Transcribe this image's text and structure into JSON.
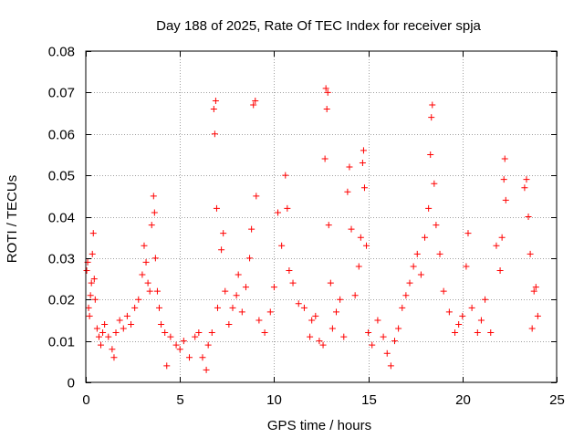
{
  "colors": {
    "series": "#ff0000",
    "grid": "#a0a0a0",
    "axis": "#000000"
  },
  "chart_data": {
    "type": "scatter",
    "title": "Day 188 of 2025, Rate Of TEC Index for receiver spja",
    "xlabel": "GPS time / hours",
    "ylabel": "ROTI / TECUs",
    "xlim": [
      0,
      25
    ],
    "ylim": [
      0,
      0.08
    ],
    "x_ticks": [
      0,
      5,
      10,
      15,
      20,
      25
    ],
    "x_tick_labels": [
      "0",
      "5",
      "10",
      "15",
      "20",
      "25"
    ],
    "y_ticks": [
      0,
      0.01,
      0.02,
      0.03,
      0.04,
      0.05,
      0.06,
      0.07,
      0.08
    ],
    "y_tick_labels": [
      "0",
      "0.01",
      "0.02",
      "0.03",
      "0.04",
      "0.05",
      "0.06",
      "0.07",
      "0.08"
    ],
    "grid": true,
    "marker": "+",
    "series": [
      {
        "name": "ROTI",
        "points": [
          [
            0.05,
            0.027
          ],
          [
            0.1,
            0.029
          ],
          [
            0.15,
            0.018
          ],
          [
            0.2,
            0.016
          ],
          [
            0.25,
            0.021
          ],
          [
            0.3,
            0.024
          ],
          [
            0.35,
            0.031
          ],
          [
            0.4,
            0.036
          ],
          [
            0.45,
            0.025
          ],
          [
            0.5,
            0.02
          ],
          [
            0.6,
            0.013
          ],
          [
            0.7,
            0.011
          ],
          [
            0.8,
            0.009
          ],
          [
            0.9,
            0.012
          ],
          [
            1.0,
            0.014
          ],
          [
            1.2,
            0.011
          ],
          [
            1.4,
            0.008
          ],
          [
            1.5,
            0.006
          ],
          [
            1.6,
            0.012
          ],
          [
            1.8,
            0.015
          ],
          [
            2.0,
            0.013
          ],
          [
            2.2,
            0.016
          ],
          [
            2.4,
            0.014
          ],
          [
            2.6,
            0.018
          ],
          [
            2.8,
            0.02
          ],
          [
            3.0,
            0.026
          ],
          [
            3.1,
            0.033
          ],
          [
            3.2,
            0.029
          ],
          [
            3.3,
            0.024
          ],
          [
            3.4,
            0.022
          ],
          [
            3.5,
            0.038
          ],
          [
            3.6,
            0.045
          ],
          [
            3.65,
            0.041
          ],
          [
            3.7,
            0.03
          ],
          [
            3.8,
            0.022
          ],
          [
            3.9,
            0.018
          ],
          [
            4.0,
            0.014
          ],
          [
            4.2,
            0.012
          ],
          [
            4.3,
            0.004
          ],
          [
            4.5,
            0.011
          ],
          [
            4.8,
            0.009
          ],
          [
            5.0,
            0.008
          ],
          [
            5.2,
            0.01
          ],
          [
            5.5,
            0.006
          ],
          [
            5.8,
            0.011
          ],
          [
            6.0,
            0.012
          ],
          [
            6.2,
            0.006
          ],
          [
            6.4,
            0.003
          ],
          [
            6.5,
            0.009
          ],
          [
            6.7,
            0.012
          ],
          [
            6.8,
            0.066
          ],
          [
            6.85,
            0.06
          ],
          [
            6.9,
            0.068
          ],
          [
            6.95,
            0.042
          ],
          [
            7.0,
            0.018
          ],
          [
            7.2,
            0.032
          ],
          [
            7.3,
            0.036
          ],
          [
            7.4,
            0.022
          ],
          [
            7.6,
            0.014
          ],
          [
            7.8,
            0.018
          ],
          [
            8.0,
            0.021
          ],
          [
            8.1,
            0.026
          ],
          [
            8.3,
            0.017
          ],
          [
            8.5,
            0.023
          ],
          [
            8.7,
            0.03
          ],
          [
            8.8,
            0.037
          ],
          [
            8.9,
            0.067
          ],
          [
            9.0,
            0.068
          ],
          [
            9.05,
            0.045
          ],
          [
            9.2,
            0.015
          ],
          [
            9.5,
            0.012
          ],
          [
            9.8,
            0.017
          ],
          [
            10.0,
            0.023
          ],
          [
            10.2,
            0.041
          ],
          [
            10.4,
            0.033
          ],
          [
            10.6,
            0.05
          ],
          [
            10.7,
            0.042
          ],
          [
            10.8,
            0.027
          ],
          [
            11.0,
            0.024
          ],
          [
            11.3,
            0.019
          ],
          [
            11.6,
            0.018
          ],
          [
            11.9,
            0.011
          ],
          [
            12.0,
            0.015
          ],
          [
            12.2,
            0.016
          ],
          [
            12.4,
            0.01
          ],
          [
            12.6,
            0.009
          ],
          [
            12.7,
            0.054
          ],
          [
            12.75,
            0.071
          ],
          [
            12.8,
            0.066
          ],
          [
            12.85,
            0.07
          ],
          [
            12.9,
            0.038
          ],
          [
            13.0,
            0.024
          ],
          [
            13.1,
            0.013
          ],
          [
            13.3,
            0.017
          ],
          [
            13.5,
            0.02
          ],
          [
            13.7,
            0.011
          ],
          [
            13.9,
            0.046
          ],
          [
            14.0,
            0.052
          ],
          [
            14.1,
            0.037
          ],
          [
            14.3,
            0.021
          ],
          [
            14.5,
            0.028
          ],
          [
            14.6,
            0.035
          ],
          [
            14.7,
            0.053
          ],
          [
            14.75,
            0.056
          ],
          [
            14.8,
            0.047
          ],
          [
            14.9,
            0.033
          ],
          [
            15.0,
            0.012
          ],
          [
            15.2,
            0.009
          ],
          [
            15.5,
            0.015
          ],
          [
            15.8,
            0.011
          ],
          [
            16.0,
            0.007
          ],
          [
            16.2,
            0.004
          ],
          [
            16.4,
            0.01
          ],
          [
            16.6,
            0.013
          ],
          [
            16.8,
            0.018
          ],
          [
            17.0,
            0.021
          ],
          [
            17.2,
            0.024
          ],
          [
            17.4,
            0.028
          ],
          [
            17.6,
            0.031
          ],
          [
            17.8,
            0.026
          ],
          [
            18.0,
            0.035
          ],
          [
            18.2,
            0.042
          ],
          [
            18.3,
            0.055
          ],
          [
            18.35,
            0.064
          ],
          [
            18.4,
            0.067
          ],
          [
            18.5,
            0.048
          ],
          [
            18.6,
            0.038
          ],
          [
            18.8,
            0.031
          ],
          [
            19.0,
            0.022
          ],
          [
            19.3,
            0.017
          ],
          [
            19.6,
            0.012
          ],
          [
            19.8,
            0.014
          ],
          [
            20.0,
            0.016
          ],
          [
            20.2,
            0.028
          ],
          [
            20.3,
            0.036
          ],
          [
            20.5,
            0.018
          ],
          [
            20.8,
            0.012
          ],
          [
            21.0,
            0.015
          ],
          [
            21.2,
            0.02
          ],
          [
            21.5,
            0.012
          ],
          [
            21.8,
            0.033
          ],
          [
            22.0,
            0.027
          ],
          [
            22.1,
            0.035
          ],
          [
            22.2,
            0.049
          ],
          [
            22.25,
            0.054
          ],
          [
            22.3,
            0.044
          ],
          [
            23.3,
            0.047
          ],
          [
            23.4,
            0.049
          ],
          [
            23.5,
            0.04
          ],
          [
            23.6,
            0.031
          ],
          [
            23.7,
            0.013
          ],
          [
            23.8,
            0.022
          ],
          [
            23.9,
            0.023
          ],
          [
            24.0,
            0.016
          ]
        ]
      }
    ]
  }
}
